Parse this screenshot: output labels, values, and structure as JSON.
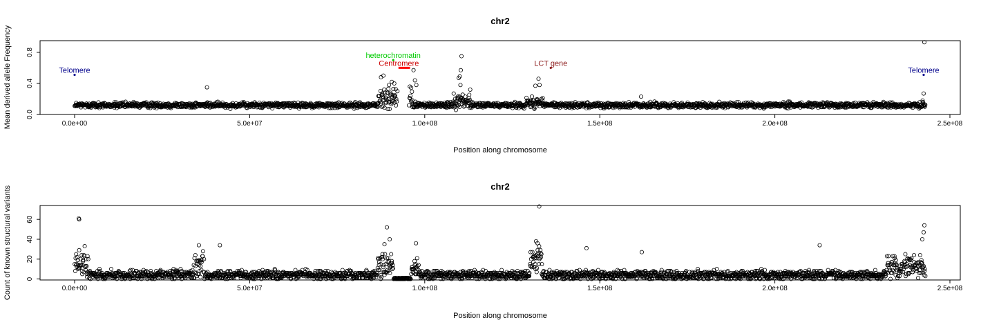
{
  "chart_data": [
    {
      "type": "scatter",
      "title": "chr2",
      "xlabel": "Position along chromosome",
      "ylabel": "Mean derived allele Frequency",
      "xlim": [
        0,
        250000000
      ],
      "ylim": [
        0,
        0.95
      ],
      "x_ticks": [
        0,
        50000000,
        100000000,
        150000000,
        200000000,
        250000000
      ],
      "x_tick_labels": [
        "0.0e+00",
        "5.0e+07",
        "1.0e+08",
        "1.5e+08",
        "2.0e+08",
        "2.5e+08"
      ],
      "y_ticks": [
        0,
        0.4,
        0.8
      ],
      "y_tick_labels": [
        "0.0",
        "0.4",
        "0.8"
      ],
      "grid": false,
      "baseline": {
        "mean": 0.12,
        "spread": 0.03,
        "gaps": [
          [
            92000000,
            95500000
          ]
        ],
        "regions": [
          {
            "from": 86500000,
            "to": 96500000,
            "mean": 0.2,
            "spread": 0.12
          },
          {
            "from": 108000000,
            "to": 113000000,
            "mean": 0.17,
            "spread": 0.08
          },
          {
            "from": 129000000,
            "to": 134000000,
            "mean": 0.15,
            "spread": 0.06
          }
        ]
      },
      "points": [
        {
          "x": 37800000,
          "y": 0.35
        },
        {
          "x": 87500000,
          "y": 0.48
        },
        {
          "x": 88200000,
          "y": 0.5
        },
        {
          "x": 89800000,
          "y": 0.38
        },
        {
          "x": 90600000,
          "y": 0.42
        },
        {
          "x": 91300000,
          "y": 0.4
        },
        {
          "x": 92200000,
          "y": 0.3
        },
        {
          "x": 96800000,
          "y": 0.57
        },
        {
          "x": 97200000,
          "y": 0.44
        },
        {
          "x": 97600000,
          "y": 0.38
        },
        {
          "x": 110500000,
          "y": 0.75
        },
        {
          "x": 110300000,
          "y": 0.57
        },
        {
          "x": 110000000,
          "y": 0.49
        },
        {
          "x": 109700000,
          "y": 0.47
        },
        {
          "x": 110200000,
          "y": 0.38
        },
        {
          "x": 113000000,
          "y": 0.32
        },
        {
          "x": 131600000,
          "y": 0.37
        },
        {
          "x": 132500000,
          "y": 0.46
        },
        {
          "x": 132800000,
          "y": 0.38
        },
        {
          "x": 161800000,
          "y": 0.23
        },
        {
          "x": 242700000,
          "y": 0.93
        },
        {
          "x": 242500000,
          "y": 0.27
        },
        {
          "x": 242200000,
          "y": 0.18
        }
      ],
      "annotations": [
        {
          "text": "Telomere",
          "x": 0,
          "y": 0.51,
          "color": "#00008b",
          "marker": true
        },
        {
          "text": "Telomere",
          "x": 242500000,
          "y": 0.51,
          "color": "#00008b",
          "marker": true
        },
        {
          "text": "heterochromatin",
          "x": 91000000,
          "y": 0.7,
          "color": "#00cc00",
          "marker": true
        },
        {
          "text": "Centromere",
          "x": 92600000,
          "y": 0.6,
          "color": "#cc0000",
          "marker": false
        },
        {
          "text": "LCT gene",
          "x": 136000000,
          "y": 0.6,
          "color": "#8b1a1a",
          "marker": true
        }
      ],
      "segments": [
        {
          "from": 92500000,
          "to": 95800000,
          "y": 0.6,
          "color": "#ff0000"
        }
      ]
    },
    {
      "type": "scatter",
      "title": "chr2",
      "xlabel": "Position along chromosome",
      "ylabel": "Count of known structural variants",
      "xlim": [
        0,
        250000000
      ],
      "ylim": [
        -1,
        74
      ],
      "x_ticks": [
        0,
        50000000,
        100000000,
        150000000,
        200000000,
        250000000
      ],
      "x_tick_labels": [
        "0.0e+00",
        "5.0e+07",
        "1.0e+08",
        "1.5e+08",
        "2.0e+08",
        "2.5e+08"
      ],
      "y_ticks": [
        0,
        20,
        40,
        60
      ],
      "y_tick_labels": [
        "0",
        "20",
        "40",
        "60"
      ],
      "grid": false,
      "baseline": {
        "mean": 4,
        "spread": 4,
        "regions": [
          {
            "from": 0,
            "to": 4000000,
            "mean": 16,
            "spread": 12
          },
          {
            "from": 34000000,
            "to": 37000000,
            "mean": 12,
            "spread": 10
          },
          {
            "from": 86500000,
            "to": 91000000,
            "mean": 15,
            "spread": 12
          },
          {
            "from": 91000000,
            "to": 96000000,
            "mean": 0.5,
            "spread": 0.5
          },
          {
            "from": 96000000,
            "to": 98500000,
            "mean": 10,
            "spread": 9
          },
          {
            "from": 130000000,
            "to": 133500000,
            "mean": 18,
            "spread": 12
          },
          {
            "from": 232000000,
            "to": 243000000,
            "mean": 12,
            "spread": 10
          }
        ]
      },
      "points": [
        {
          "x": 1200000,
          "y": 61
        },
        {
          "x": 1300000,
          "y": 60
        },
        {
          "x": 35500000,
          "y": 34
        },
        {
          "x": 41500000,
          "y": 34
        },
        {
          "x": 88500000,
          "y": 35
        },
        {
          "x": 89200000,
          "y": 52
        },
        {
          "x": 90000000,
          "y": 40
        },
        {
          "x": 97500000,
          "y": 36
        },
        {
          "x": 131800000,
          "y": 38
        },
        {
          "x": 132200000,
          "y": 36
        },
        {
          "x": 132700000,
          "y": 73
        },
        {
          "x": 146200000,
          "y": 31
        },
        {
          "x": 162000000,
          "y": 27
        },
        {
          "x": 212800000,
          "y": 34
        },
        {
          "x": 242700000,
          "y": 54
        },
        {
          "x": 242500000,
          "y": 47
        },
        {
          "x": 242100000,
          "y": 40
        }
      ],
      "annotations": [],
      "segments": []
    }
  ]
}
